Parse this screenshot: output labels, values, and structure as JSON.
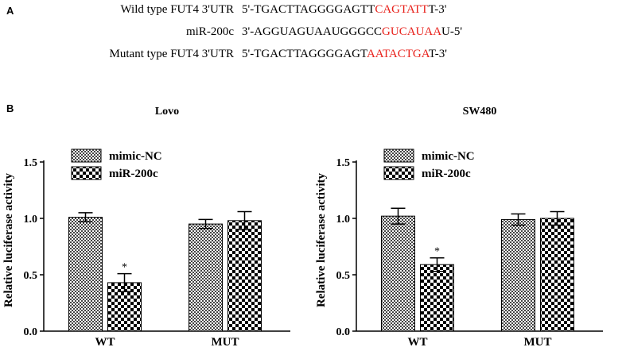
{
  "panel_a": {
    "label": "A",
    "rows": [
      {
        "name": "Wild type FUT4 3'UTR",
        "prefix": "5'-TGACTTAGGGGAGTT",
        "highlight": "CAGTATT",
        "suffix": "T-3'"
      },
      {
        "name": "miR-200c",
        "prefix": "3'-AGGUAGUAAUGGGCC",
        "highlight": "GUCAUAA",
        "suffix": "U-5'"
      },
      {
        "name": "Mutant type FUT4 3'UTR",
        "prefix": "5'-TGACTTAGGGGAGT",
        "highlight": "AATACTGA",
        "suffix": "T-3'"
      }
    ],
    "highlight_color": "#e8211b"
  },
  "panel_b": {
    "label": "B"
  },
  "chart_data": [
    {
      "type": "bar",
      "title": "Lovo",
      "ylabel": "Relative luciferase activity",
      "xlabel": "",
      "categories": [
        "WT",
        "MUT"
      ],
      "yticks": [
        "0.0",
        "0.5",
        "1.0",
        "1.5"
      ],
      "ylim": [
        0,
        1.5
      ],
      "series": [
        {
          "name": "mimic-NC",
          "pattern": "dense-check",
          "values": [
            1.01,
            0.95
          ],
          "errors": [
            0.04,
            0.04
          ]
        },
        {
          "name": "miR-200c",
          "pattern": "checker",
          "values": [
            0.43,
            0.98
          ],
          "errors": [
            0.08,
            0.08
          ]
        }
      ],
      "annotations": [
        {
          "category": "WT",
          "series": "miR-200c",
          "text": "*"
        }
      ],
      "legend_position": "top-left"
    },
    {
      "type": "bar",
      "title": "SW480",
      "ylabel": "Relative luciferase activity",
      "xlabel": "",
      "categories": [
        "WT",
        "MUT"
      ],
      "yticks": [
        "0.0",
        "0.5",
        "1.0",
        "1.5"
      ],
      "ylim": [
        0,
        1.5
      ],
      "series": [
        {
          "name": "mimic-NC",
          "pattern": "dense-check",
          "values": [
            1.02,
            0.99
          ],
          "errors": [
            0.07,
            0.05
          ]
        },
        {
          "name": "miR-200c",
          "pattern": "checker",
          "values": [
            0.59,
            1.0
          ],
          "errors": [
            0.06,
            0.06
          ]
        }
      ],
      "annotations": [
        {
          "category": "WT",
          "series": "miR-200c",
          "text": "*"
        }
      ],
      "legend_position": "top-left"
    }
  ]
}
